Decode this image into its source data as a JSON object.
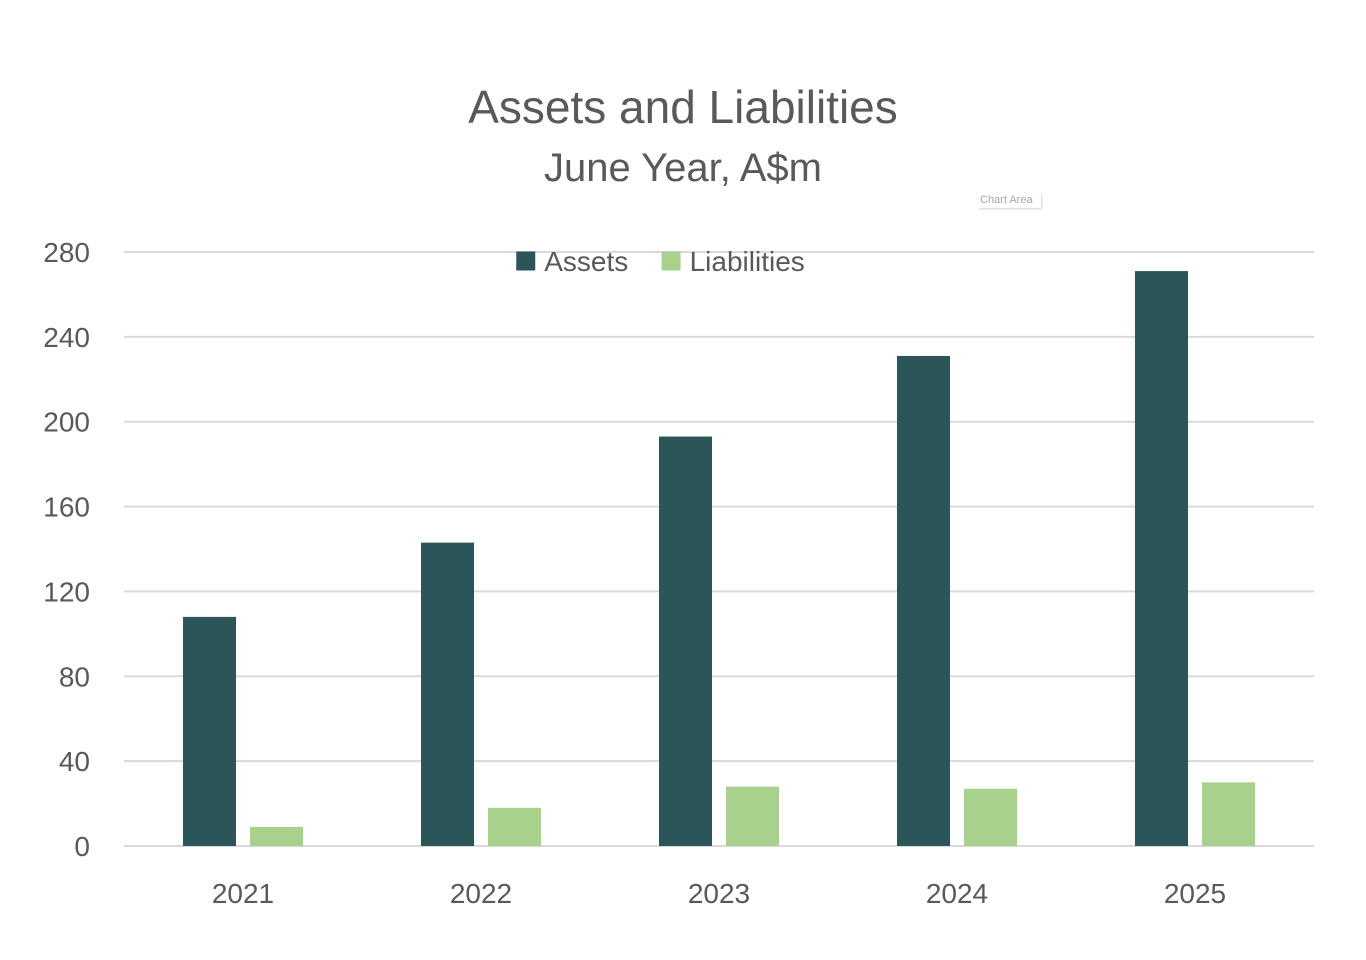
{
  "chart_data": {
    "type": "bar",
    "title": "Assets and Liabilities",
    "subtitle": "June Year, A$m",
    "categories": [
      "2021",
      "2022",
      "2023",
      "2024",
      "2025"
    ],
    "series": [
      {
        "name": "Assets",
        "color": "#2b5558",
        "values": [
          108,
          143,
          193,
          231,
          271
        ]
      },
      {
        "name": "Liabilities",
        "color": "#a9d18e",
        "values": [
          9,
          18,
          28,
          27,
          30
        ]
      }
    ],
    "ylim": [
      0,
      280
    ],
    "yticks": [
      0,
      40,
      80,
      120,
      160,
      200,
      240,
      280
    ],
    "grid": true,
    "legend_position": "top-center",
    "xlabel": "",
    "ylabel": ""
  },
  "ui": {
    "chart_area_tag": "Chart Area"
  },
  "colors": {
    "gridline": "#d9d9d9",
    "text": "#595959"
  }
}
